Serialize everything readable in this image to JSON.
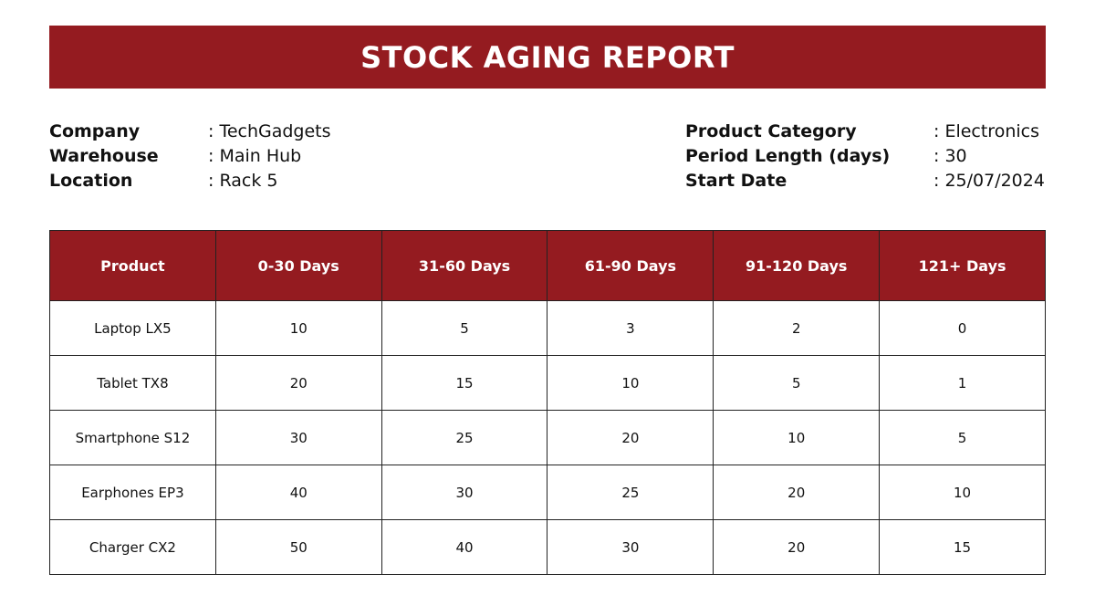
{
  "colors": {
    "accent": "#941b20",
    "header_text": "#ffffff",
    "border": "#222222",
    "background": "#ffffff"
  },
  "report": {
    "title": "STOCK AGING REPORT"
  },
  "info_left": [
    {
      "label": "Company",
      "value": ": TechGadgets"
    },
    {
      "label": "Warehouse",
      "value": ": Main Hub"
    },
    {
      "label": "Location",
      "value": ": Rack 5"
    }
  ],
  "info_right": [
    {
      "label": "Product Category",
      "value": ": Electronics"
    },
    {
      "label": "Period Length (days)",
      "value": ": 30"
    },
    {
      "label": "Start Date",
      "value": ": 25/07/2024"
    }
  ],
  "table": {
    "headers": [
      "Product",
      "0-30 Days",
      "31-60 Days",
      "61-90 Days",
      "91-120 Days",
      "121+ Days"
    ],
    "rows": [
      [
        "Laptop LX5",
        "10",
        "5",
        "3",
        "2",
        "0"
      ],
      [
        "Tablet TX8",
        "20",
        "15",
        "10",
        "5",
        "1"
      ],
      [
        "Smartphone S12",
        "30",
        "25",
        "20",
        "10",
        "5"
      ],
      [
        "Earphones EP3",
        "40",
        "30",
        "25",
        "20",
        "10"
      ],
      [
        "Charger CX2",
        "50",
        "40",
        "30",
        "20",
        "15"
      ]
    ]
  }
}
